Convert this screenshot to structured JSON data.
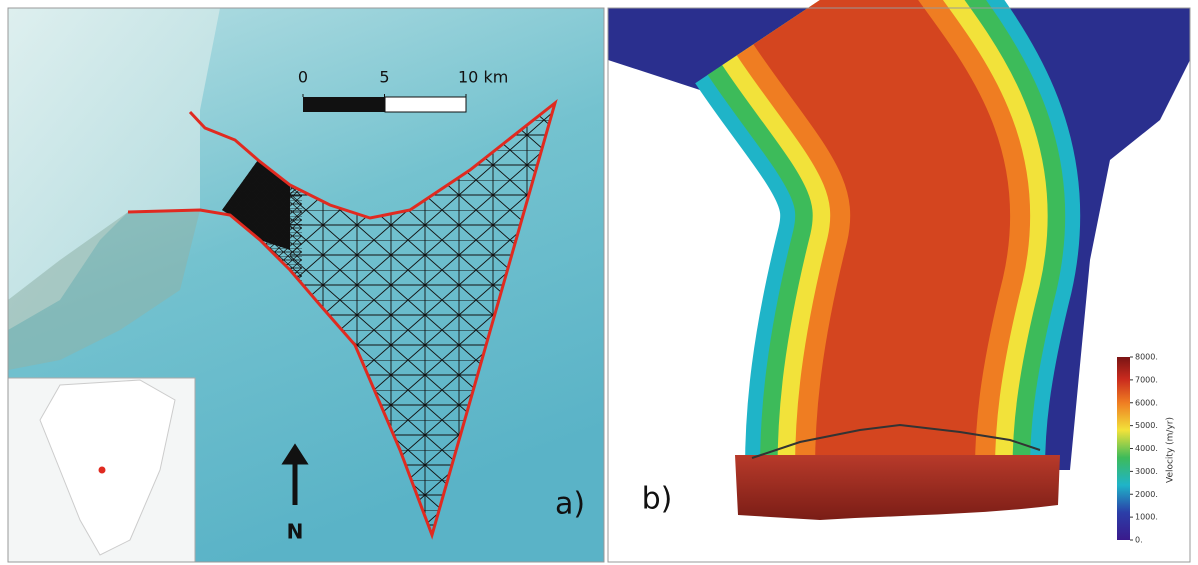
{
  "panel_a": {
    "label": "a)",
    "north": "N",
    "scale_bar": {
      "ticks": [
        0,
        5,
        {
          "value": 10,
          "label": "10 km"
        }
      ]
    }
  },
  "panel_b": {
    "label": "b)",
    "colorbar": {
      "title": "Velocity (m/yr)",
      "ticks": [
        {
          "value": 8000,
          "label": "8000."
        },
        {
          "value": 7000,
          "label": "7000."
        },
        {
          "value": 6000,
          "label": "6000."
        },
        {
          "value": 5000,
          "label": "5000."
        },
        {
          "value": 4000,
          "label": "4000."
        },
        {
          "value": 3000,
          "label": "3000."
        },
        {
          "value": 2000,
          "label": "2000."
        },
        {
          "value": 1000,
          "label": "1000."
        },
        {
          "value": 0,
          "label": "0."
        }
      ]
    }
  }
}
